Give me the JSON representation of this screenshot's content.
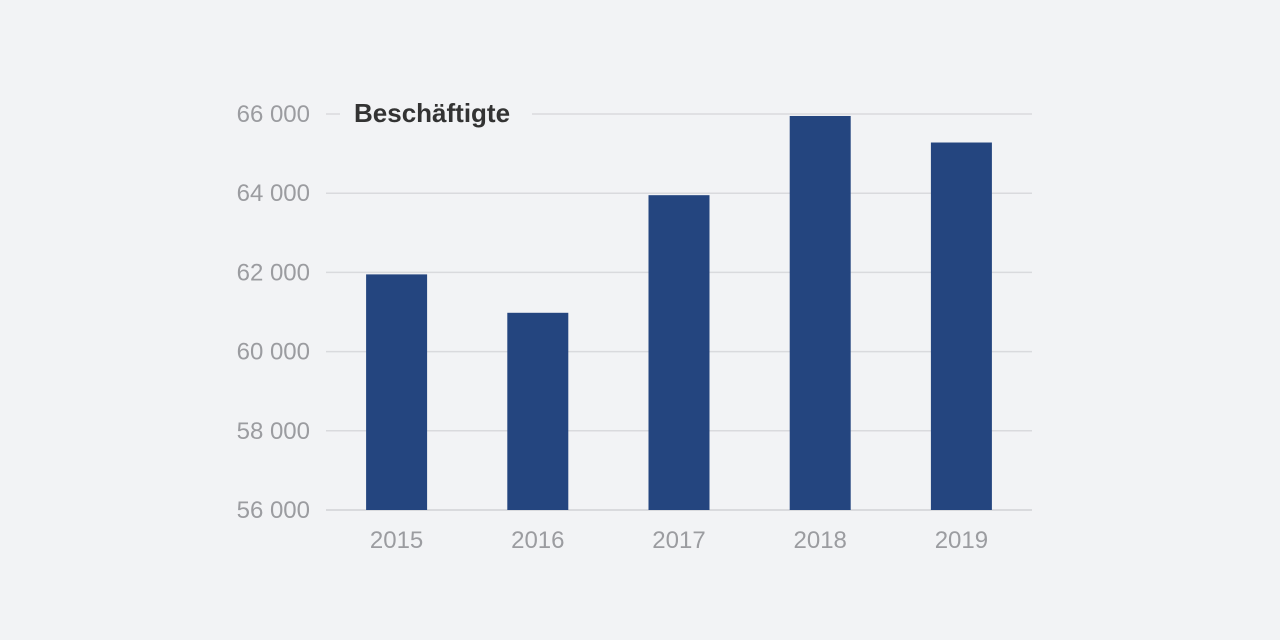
{
  "chart_data": {
    "type": "bar",
    "title": "Beschäftigte",
    "categories": [
      "2015",
      "2016",
      "2017",
      "2018",
      "2019"
    ],
    "values": [
      61950,
      60980,
      63950,
      65950,
      65280
    ],
    "ylim": [
      56000,
      66000
    ],
    "yticks": [
      56000,
      58000,
      60000,
      62000,
      64000,
      66000
    ],
    "ytick_labels": [
      "56 000",
      "58 000",
      "60 000",
      "62 000",
      "64 000",
      "66 000"
    ],
    "grid": true,
    "legend": "none",
    "colors": {
      "bar": "#24457f",
      "grid": "#d9dadd",
      "tick_label": "#9b9ca0",
      "title": "#333333",
      "background": "#f2f3f5"
    }
  }
}
